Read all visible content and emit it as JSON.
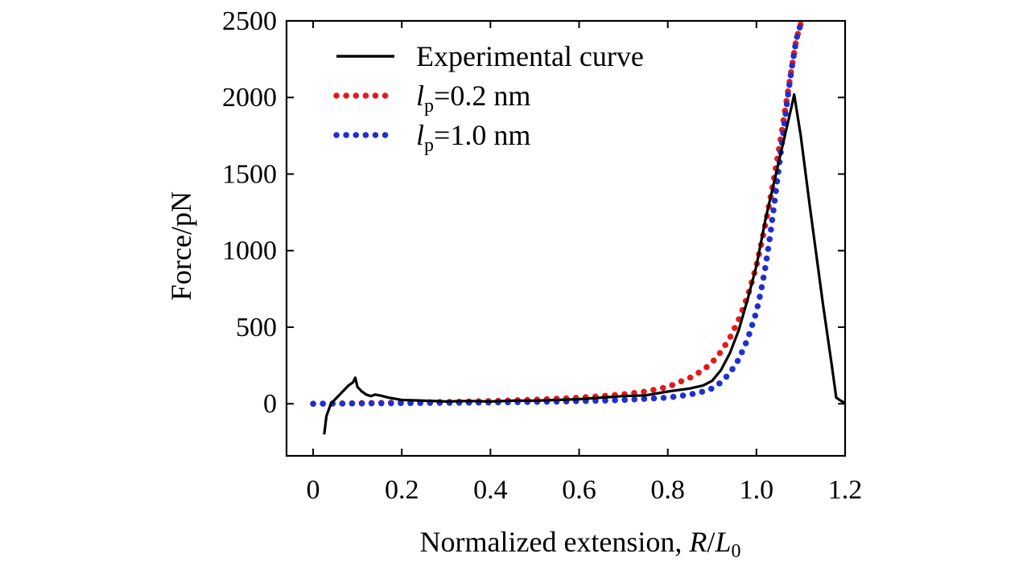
{
  "colors": {
    "experimental": "#000000",
    "lp02": "#e31a1c",
    "lp10": "#1f2fd0",
    "axis": "#000000"
  },
  "chart_data": {
    "type": "line",
    "title": "",
    "xlabel": {
      "prefix": "Normalized extension, ",
      "var1": "R",
      "slash": "/",
      "var2": "L",
      "sub": "0"
    },
    "ylabel": "Force/pN",
    "xlim": [
      -0.06,
      1.2
    ],
    "ylim": [
      -340,
      2500
    ],
    "xticks": [
      0,
      0.2,
      0.4,
      0.6,
      0.8,
      1.0,
      1.2
    ],
    "xtick_labels": [
      "0",
      "0.2",
      "0.4",
      "0.6",
      "0.8",
      "1.0",
      "1.2"
    ],
    "yticks": [
      0,
      500,
      1000,
      1500,
      2000,
      2500
    ],
    "ytick_labels": [
      "0",
      "500",
      "1000",
      "1500",
      "2000",
      "2500"
    ],
    "legend_position": "top-left",
    "series": [
      {
        "name": "Experimental curve",
        "legend": {
          "text": "Experimental curve",
          "var": "",
          "sub": "",
          "rest": ""
        },
        "style": "solid",
        "color_key": "experimental",
        "x": [
          0.025,
          0.03,
          0.04,
          0.05,
          0.06,
          0.07,
          0.08,
          0.09,
          0.095,
          0.1,
          0.11,
          0.12,
          0.13,
          0.14,
          0.15,
          0.17,
          0.2,
          0.25,
          0.3,
          0.35,
          0.4,
          0.45,
          0.5,
          0.55,
          0.6,
          0.65,
          0.7,
          0.75,
          0.8,
          0.85,
          0.88,
          0.9,
          0.92,
          0.94,
          0.96,
          0.98,
          1.0,
          1.02,
          1.04,
          1.06,
          1.08,
          1.085,
          1.1,
          1.12,
          1.15,
          1.17,
          1.18,
          1.19,
          1.2
        ],
        "y": [
          -200,
          -80,
          0,
          30,
          60,
          90,
          120,
          140,
          170,
          110,
          80,
          60,
          50,
          60,
          55,
          40,
          25,
          20,
          15,
          18,
          15,
          20,
          20,
          25,
          30,
          40,
          50,
          55,
          80,
          100,
          120,
          150,
          220,
          330,
          480,
          680,
          900,
          1200,
          1450,
          1700,
          1950,
          2020,
          1750,
          1300,
          650,
          250,
          40,
          20,
          5
        ]
      },
      {
        "name": "lp=0.2 nm",
        "legend": {
          "text": "",
          "var": "l",
          "sub": "p",
          "rest": "=0.2 nm"
        },
        "style": "dotted",
        "color_key": "lp02",
        "x": [
          0.0,
          0.05,
          0.1,
          0.15,
          0.2,
          0.25,
          0.3,
          0.35,
          0.4,
          0.45,
          0.5,
          0.55,
          0.6,
          0.65,
          0.7,
          0.75,
          0.8,
          0.85,
          0.88,
          0.9,
          0.92,
          0.94,
          0.96,
          0.98,
          1.0,
          1.01,
          1.02,
          1.03,
          1.04,
          1.05,
          1.06,
          1.07,
          1.08,
          1.09,
          1.1
        ],
        "y": [
          0,
          2,
          4,
          6,
          8,
          10,
          12,
          15,
          18,
          22,
          27,
          33,
          40,
          50,
          62,
          80,
          110,
          170,
          220,
          270,
          340,
          430,
          550,
          700,
          900,
          1030,
          1170,
          1320,
          1480,
          1650,
          1830,
          2020,
          2200,
          2380,
          2480
        ]
      },
      {
        "name": "lp=1.0 nm",
        "legend": {
          "text": "",
          "var": "l",
          "sub": "p",
          "rest": "=1.0 nm"
        },
        "style": "dotted",
        "color_key": "lp10",
        "x": [
          0.0,
          0.05,
          0.1,
          0.15,
          0.2,
          0.25,
          0.3,
          0.35,
          0.4,
          0.45,
          0.5,
          0.55,
          0.6,
          0.65,
          0.7,
          0.75,
          0.8,
          0.85,
          0.88,
          0.9,
          0.92,
          0.94,
          0.96,
          0.98,
          1.0,
          1.01,
          1.02,
          1.03,
          1.04,
          1.05,
          1.06,
          1.07,
          1.08,
          1.09,
          1.1
        ],
        "y": [
          0,
          1,
          2,
          3,
          4,
          5,
          6,
          7,
          8,
          10,
          12,
          14,
          17,
          20,
          25,
          32,
          40,
          60,
          80,
          100,
          140,
          200,
          290,
          420,
          600,
          730,
          890,
          1080,
          1300,
          1530,
          1760,
          1990,
          2200,
          2380,
          2480
        ]
      }
    ]
  }
}
